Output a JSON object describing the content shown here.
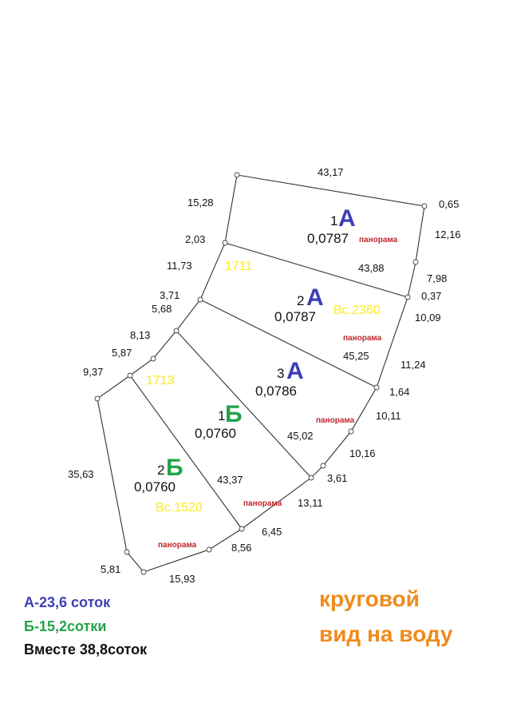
{
  "dimensions": {
    "top": "43,17",
    "top_right": "0,65",
    "left_upper": "15,28",
    "right_upper": "12,16",
    "node_203": "2,03",
    "plot1_bottom": "43,88",
    "left_1173": "11,73",
    "right_798": "7,98",
    "node_371": "3,71",
    "node_037": "0,37",
    "node_568": "5,68",
    "right_1009": "10,09",
    "node_813": "8,13",
    "plot2_bottom": "45,25",
    "left_587": "5,87",
    "right_1124": "11,24",
    "left_937": "9,37",
    "node_164": "1,64",
    "right_1011": "10,11",
    "right_1016": "10,16",
    "plot3_bottom": "45,02",
    "node_361": "3,61",
    "left_long": "35,63",
    "plot4_bottom": "43,37",
    "bottom_1311": "13,11",
    "bottom_645": "6,45",
    "bottom_856": "8,56",
    "bottom_left": "5,81",
    "bottom": "15,93"
  },
  "plots": [
    {
      "index": "1",
      "letter": "А",
      "area": "0,0787",
      "panorama": "панорама"
    },
    {
      "index": "2",
      "letter": "А",
      "area": "0,0787",
      "panorama": "панорама",
      "extra": "Вс.2360"
    },
    {
      "index": "3",
      "letter": "А",
      "area": "0,0786",
      "panorama": "панорама"
    },
    {
      "index": "1",
      "letter": "Б",
      "area": "0,0760",
      "panorama": "панорама"
    },
    {
      "index": "2",
      "letter": "Б",
      "area": "0,0760",
      "panorama": "панорама",
      "extra": "Вс.1520"
    }
  ],
  "labels": {
    "cad_1711": "1711",
    "cad_1713": "1713"
  },
  "legend": {
    "a": "А-23,6 соток",
    "b": "Б-15,2сотки",
    "total": "Вместе 38,8соток"
  },
  "note": {
    "line1": "круговой",
    "line2": "вид на воду"
  },
  "colors": {
    "a": "#3b3fb5",
    "b": "#23a34a",
    "highlight": "#ffea1a",
    "panorama": "#c0272d",
    "note": "#f08a1c"
  }
}
